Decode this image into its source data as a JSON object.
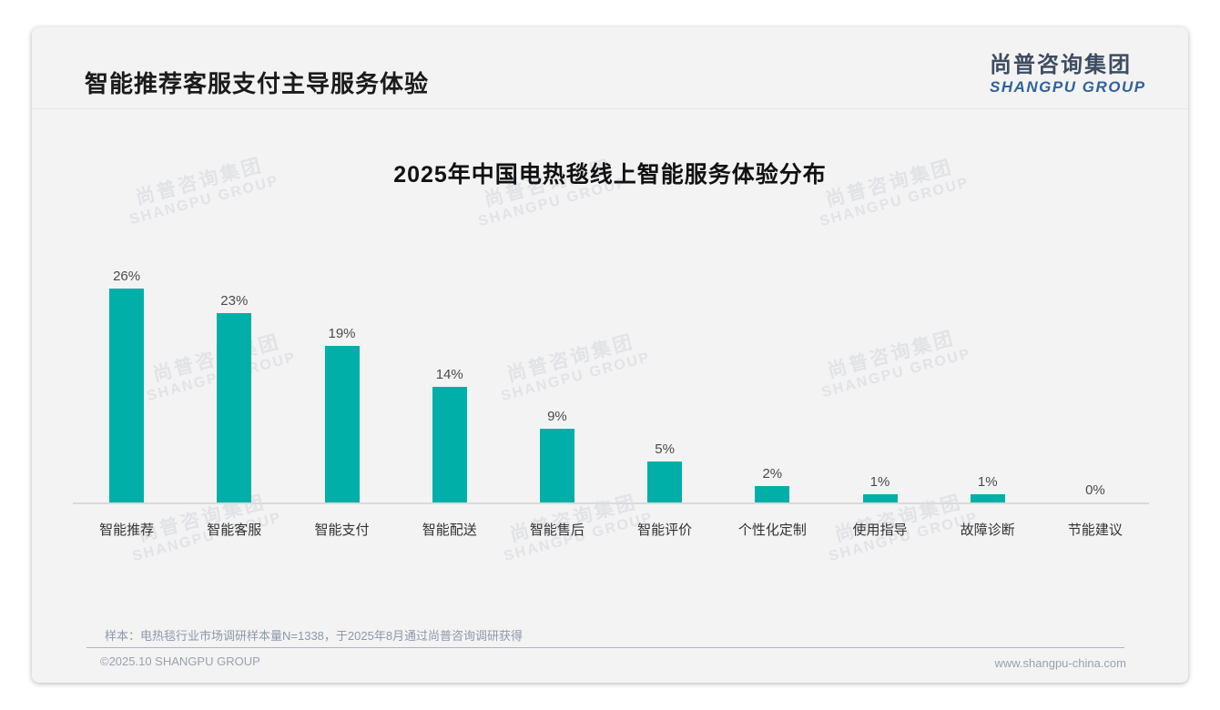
{
  "header": {
    "title": "智能推荐客服支付主导服务体验",
    "logo_cn": "尚普咨询集团",
    "logo_en": "SHANGPU GROUP"
  },
  "watermark": {
    "cn": "尚普咨询集团",
    "en": "SHANGPU GROUP"
  },
  "chart_data": {
    "type": "bar",
    "title": "2025年中国电热毯线上智能服务体验分布",
    "categories": [
      "智能推荐",
      "智能客服",
      "智能支付",
      "智能配送",
      "智能售后",
      "智能评价",
      "个性化定制",
      "使用指导",
      "故障诊断",
      "节能建议"
    ],
    "values": [
      26,
      23,
      19,
      14,
      9,
      5,
      2,
      1,
      1,
      0
    ],
    "value_labels": [
      "26%",
      "23%",
      "19%",
      "14%",
      "9%",
      "5%",
      "2%",
      "1%",
      "1%",
      "0%"
    ],
    "unit": "%",
    "bar_color": "#00b0a8",
    "ylim": [
      0,
      28
    ],
    "grid": false,
    "legend": false,
    "xlabel": "",
    "ylabel": ""
  },
  "footer": {
    "note": "样本：电热毯行业市场调研样本量N=1338，于2025年8月通过尚普咨询调研获得",
    "copyright": "©2025.10 SHANGPU GROUP",
    "website": "www.shangpu-china.com"
  }
}
